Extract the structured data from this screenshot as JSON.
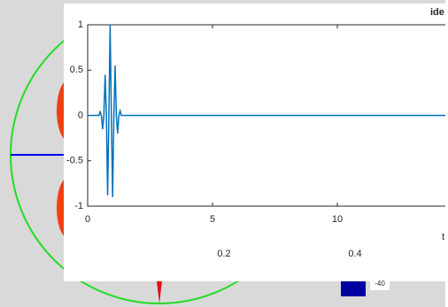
{
  "background_window": {
    "x_tick_labels": [
      "0.2",
      "0.4"
    ],
    "colorbar_label": "-40"
  },
  "chart_data": {
    "type": "line",
    "title": "ide",
    "x_label": "t",
    "x": [
      0,
      0.45,
      0.5,
      0.55,
      0.6,
      0.65,
      0.7,
      0.75,
      0.8,
      0.85,
      0.9,
      0.95,
      1.0,
      1.05,
      1.1,
      1.15,
      1.2,
      1.25,
      1.3,
      1.35,
      15
    ],
    "series": [
      {
        "color": "#0072bd",
        "values": [
          0,
          0,
          0.04,
          0,
          -0.15,
          0,
          0.45,
          0,
          -0.88,
          0,
          1,
          0,
          -0.9,
          0,
          0.55,
          0,
          -0.2,
          0,
          0.05,
          0,
          0
        ]
      }
    ],
    "xlim": [
      0,
      15
    ],
    "xticks": [
      0,
      5,
      10
    ],
    "ylim": [
      -1,
      1
    ],
    "yticks": [
      1,
      0.5,
      0,
      -0.5,
      -1
    ]
  }
}
